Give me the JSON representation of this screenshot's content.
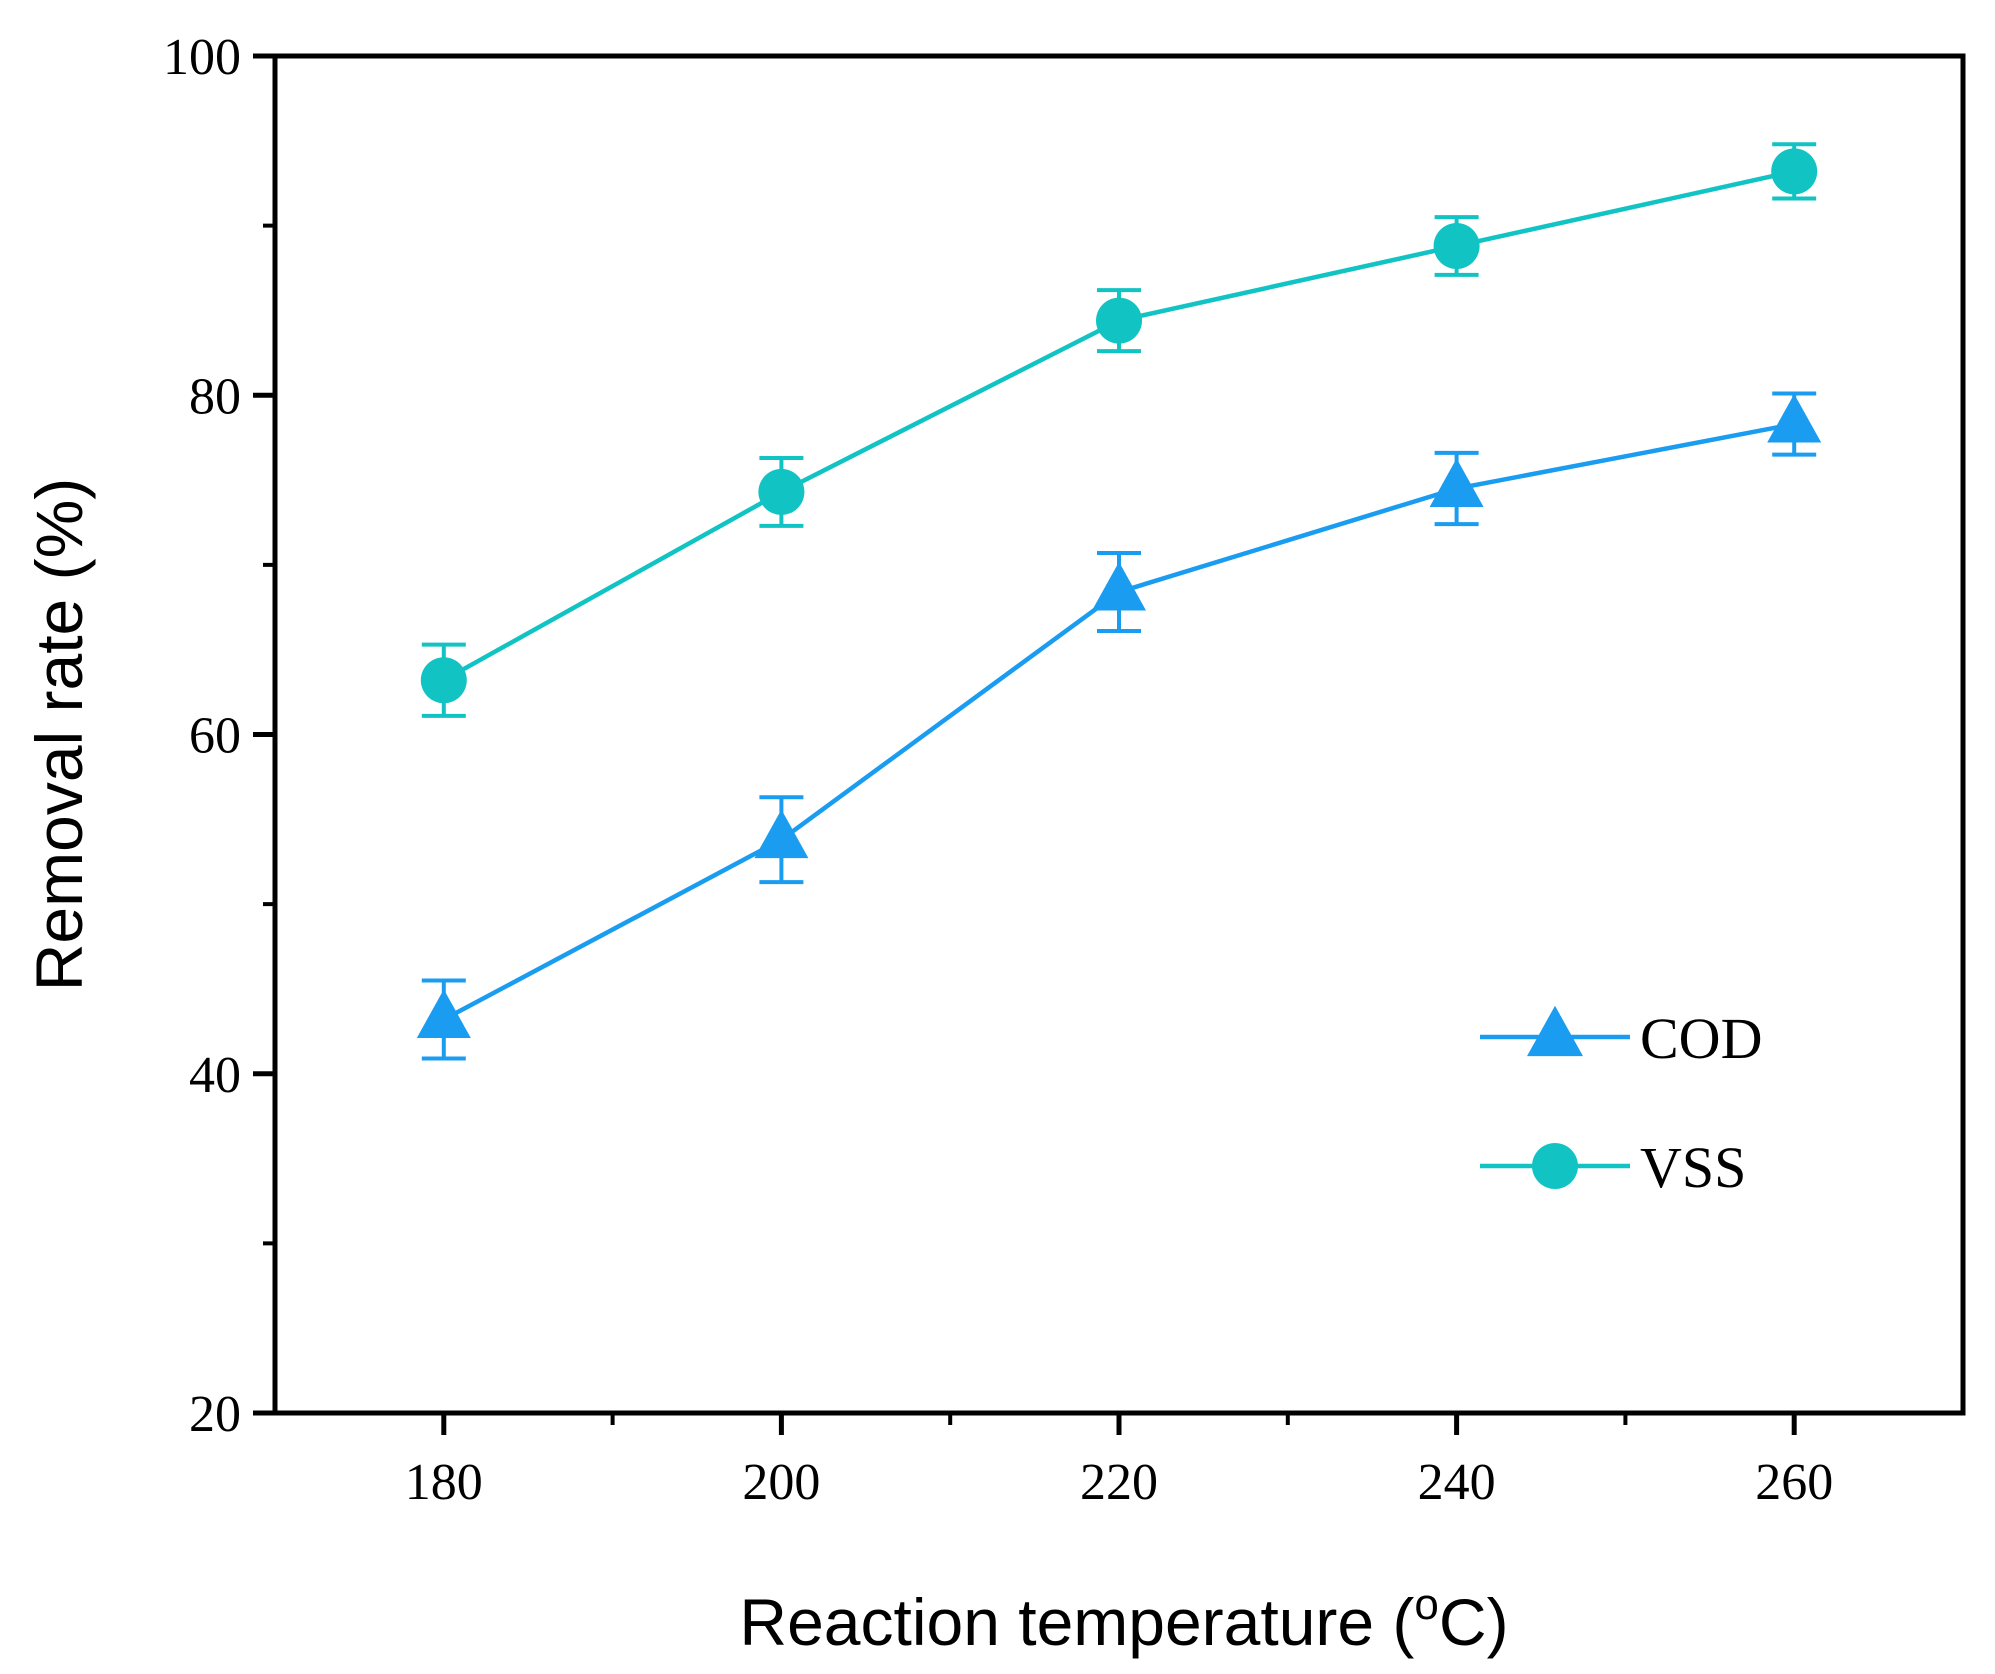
{
  "chart_data": {
    "type": "line",
    "title": "",
    "xlabel_main": "Reaction temperature (",
    "xlabel_sup": "o",
    "xlabel_tail": "C)",
    "ylabel": "Removal rate (%)",
    "x": [
      180,
      200,
      220,
      240,
      260
    ],
    "xlim": [
      170,
      270
    ],
    "ylim": [
      20,
      100
    ],
    "xticks": [
      180,
      200,
      220,
      240,
      260
    ],
    "xticks_minor": [
      190,
      210,
      230,
      250
    ],
    "yticks": [
      20,
      40,
      60,
      80,
      100
    ],
    "yticks_minor": [
      30,
      50,
      70,
      90
    ],
    "xtick_labels": [
      "180",
      "200",
      "220",
      "240",
      "260"
    ],
    "ytick_labels": [
      "20",
      "40",
      "60",
      "80",
      "100"
    ],
    "grid": false,
    "legend_position": "lower-right",
    "series": [
      {
        "name": "COD",
        "marker": "triangle",
        "color": "#1a9cf0",
        "values": [
          43.2,
          53.8,
          68.4,
          74.5,
          78.3
        ],
        "errors": [
          2.3,
          2.5,
          2.3,
          2.1,
          1.8
        ]
      },
      {
        "name": "VSS",
        "marker": "circle",
        "color": "#12c3c3",
        "values": [
          63.2,
          74.3,
          84.4,
          88.8,
          93.2
        ],
        "errors": [
          2.1,
          2.0,
          1.8,
          1.7,
          1.6
        ]
      }
    ]
  }
}
